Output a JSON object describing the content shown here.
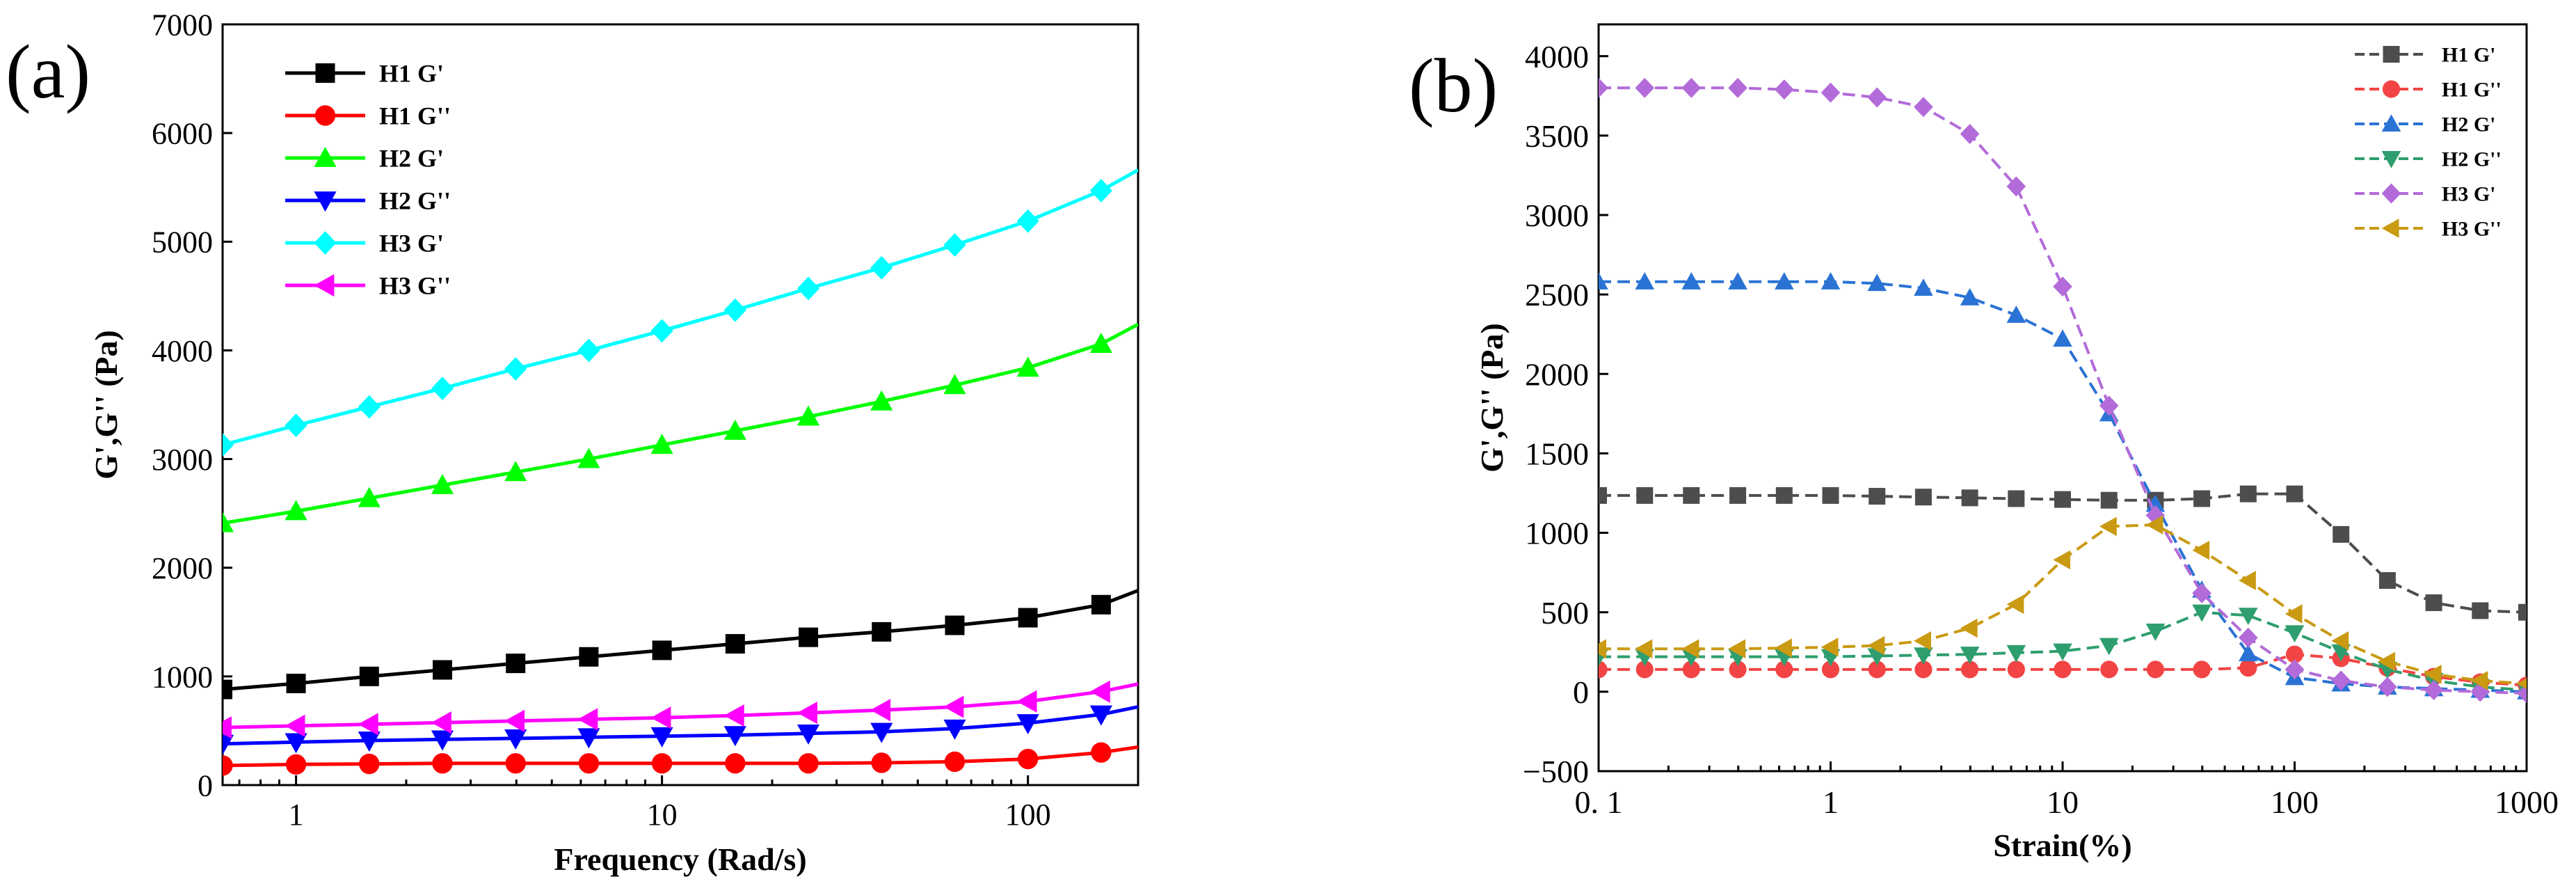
{
  "panels": {
    "a": {
      "label": "(a)"
    },
    "b": {
      "label": "(b)"
    }
  },
  "chart_data": [
    {
      "id": "a",
      "type": "line",
      "xscale": "log",
      "xlabel": "Frequency (Rad/s)",
      "ylabel": "G',G'' (Pa)",
      "xlim": [
        0.63,
        200
      ],
      "ylim": [
        0,
        7000
      ],
      "xticks": [
        1,
        10,
        100
      ],
      "xtick_labels": [
        "1",
        "10",
        "100"
      ],
      "yticks": [
        0,
        1000,
        2000,
        3000,
        4000,
        5000,
        6000,
        7000
      ],
      "ytick_labels": [
        "0",
        "1000",
        "2000",
        "3000",
        "4000",
        "5000",
        "6000",
        "7000"
      ],
      "grid": false,
      "legend_position": "top-left",
      "x": [
        0.63,
        1,
        1.585,
        2.512,
        3.981,
        6.31,
        10,
        15.85,
        25.12,
        39.81,
        63.1,
        100,
        158.5,
        200
      ],
      "series": [
        {
          "name": "H1 G'",
          "color": "#000000",
          "marker": "square",
          "dash": false,
          "values": [
            880,
            935,
            1000,
            1060,
            1120,
            1180,
            1240,
            1300,
            1360,
            1410,
            1470,
            1540,
            1660,
            1790
          ]
        },
        {
          "name": "H1 G''",
          "color": "#ff0000",
          "marker": "circle",
          "dash": false,
          "values": [
            180,
            190,
            195,
            200,
            200,
            200,
            200,
            200,
            200,
            205,
            215,
            240,
            300,
            350
          ]
        },
        {
          "name": "H2 G'",
          "color": "#00ff00",
          "marker": "triangle-up",
          "dash": false,
          "values": [
            2410,
            2520,
            2640,
            2760,
            2880,
            3000,
            3130,
            3260,
            3390,
            3530,
            3680,
            3840,
            4060,
            4240
          ]
        },
        {
          "name": "H2 G''",
          "color": "#0000ff",
          "marker": "triangle-down",
          "dash": false,
          "values": [
            380,
            395,
            410,
            420,
            430,
            440,
            450,
            460,
            475,
            490,
            520,
            570,
            650,
            720
          ]
        },
        {
          "name": "H3 G'",
          "color": "#00ffff",
          "marker": "diamond",
          "dash": false,
          "values": [
            3130,
            3310,
            3480,
            3650,
            3830,
            4000,
            4180,
            4370,
            4570,
            4760,
            4970,
            5190,
            5470,
            5660
          ]
        },
        {
          "name": "H3 G''",
          "color": "#ff00ff",
          "marker": "triangle-left",
          "dash": false,
          "values": [
            530,
            545,
            560,
            575,
            590,
            605,
            620,
            640,
            665,
            690,
            720,
            770,
            860,
            930
          ]
        }
      ]
    },
    {
      "id": "b",
      "type": "line",
      "xscale": "log",
      "xlabel": "Strain(%)",
      "ylabel": "G',G'' (Pa)",
      "xlim": [
        0.1,
        1000
      ],
      "ylim": [
        -500,
        4200
      ],
      "xticks": [
        0.1,
        1,
        10,
        100,
        1000
      ],
      "xtick_labels": [
        "0. 1",
        "1",
        "10",
        "100",
        "1000"
      ],
      "yticks": [
        -500,
        0,
        500,
        1000,
        1500,
        2000,
        2500,
        3000,
        3500,
        4000
      ],
      "ytick_labels": [
        "−500",
        "0",
        "500",
        "1000",
        "1500",
        "2000",
        "2500",
        "3000",
        "3500",
        "4000"
      ],
      "grid": false,
      "legend_position": "top-right",
      "x": [
        0.1,
        0.158,
        0.251,
        0.398,
        0.631,
        1,
        1.585,
        2.512,
        3.981,
        6.31,
        10,
        15.85,
        25.12,
        39.81,
        63.1,
        100,
        158.5,
        251.2,
        398.1,
        631,
        1000
      ],
      "series": [
        {
          "name": "H1 G'",
          "color": "#4d4d4d",
          "marker": "square",
          "dash": true,
          "values": [
            1235,
            1235,
            1235,
            1235,
            1235,
            1235,
            1230,
            1225,
            1220,
            1215,
            1210,
            1205,
            1205,
            1215,
            1245,
            1245,
            990,
            700,
            560,
            510,
            500
          ]
        },
        {
          "name": "H1 G''",
          "color": "#f24444",
          "marker": "circle",
          "dash": true,
          "values": [
            140,
            140,
            140,
            140,
            140,
            140,
            140,
            140,
            140,
            140,
            140,
            140,
            140,
            140,
            150,
            235,
            210,
            150,
            95,
            60,
            40
          ]
        },
        {
          "name": "H2 G'",
          "color": "#2a73d4",
          "marker": "triangle-up",
          "dash": true,
          "values": [
            2580,
            2580,
            2580,
            2580,
            2580,
            2580,
            2570,
            2540,
            2480,
            2370,
            2220,
            1750,
            1180,
            640,
            240,
            90,
            50,
            30,
            20,
            10,
            0
          ]
        },
        {
          "name": "H2 G''",
          "color": "#2e9e6e",
          "marker": "triangle-down",
          "dash": true,
          "values": [
            220,
            220,
            220,
            220,
            220,
            220,
            225,
            230,
            235,
            245,
            255,
            290,
            380,
            500,
            480,
            370,
            250,
            140,
            70,
            30,
            10
          ]
        },
        {
          "name": "H3 G'",
          "color": "#b26bd9",
          "marker": "diamond",
          "dash": true,
          "values": [
            3800,
            3800,
            3800,
            3800,
            3790,
            3770,
            3740,
            3680,
            3510,
            3180,
            2550,
            1800,
            1110,
            620,
            340,
            140,
            70,
            30,
            10,
            0,
            -10
          ]
        },
        {
          "name": "H3 G''",
          "color": "#c99a12",
          "marker": "triangle-left",
          "dash": true,
          "values": [
            270,
            270,
            270,
            270,
            275,
            280,
            290,
            320,
            400,
            550,
            830,
            1040,
            1050,
            890,
            700,
            490,
            320,
            190,
            110,
            70,
            50
          ]
        }
      ]
    }
  ]
}
